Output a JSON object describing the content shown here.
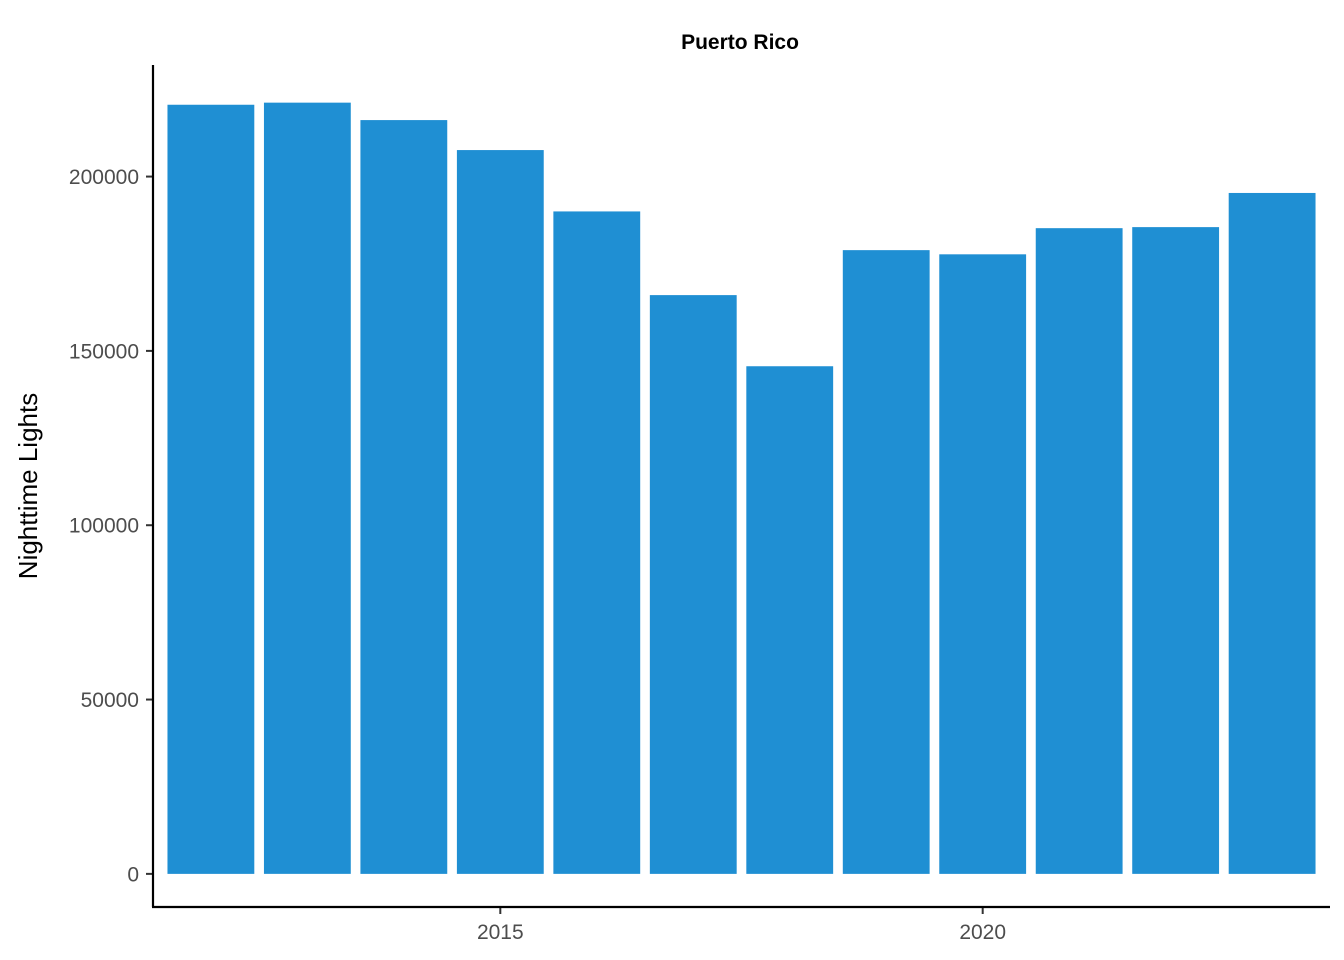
{
  "chart_data": {
    "type": "bar",
    "title": "Puerto Rico",
    "xlabel": "",
    "ylabel": "Nighttime Lights",
    "x": [
      2012,
      2013,
      2014,
      2015,
      2016,
      2017,
      2018,
      2019,
      2020,
      2021,
      2022,
      2023
    ],
    "values": [
      220600,
      221200,
      216200,
      207600,
      190000,
      166000,
      145600,
      178900,
      177700,
      185200,
      185500,
      195300
    ],
    "xlim": [
      2011.4,
      2023.6
    ],
    "ylim": [
      -9500,
      232000
    ],
    "x_ticks": [
      2015,
      2020
    ],
    "x_tick_labels": [
      "2015",
      "2020"
    ],
    "y_ticks": [
      0,
      50000,
      100000,
      150000,
      200000
    ],
    "y_tick_labels": [
      "0",
      "50000",
      "100000",
      "150000",
      "200000"
    ],
    "bar_color": "#1f8fd3",
    "grid": false,
    "legend": "none"
  }
}
